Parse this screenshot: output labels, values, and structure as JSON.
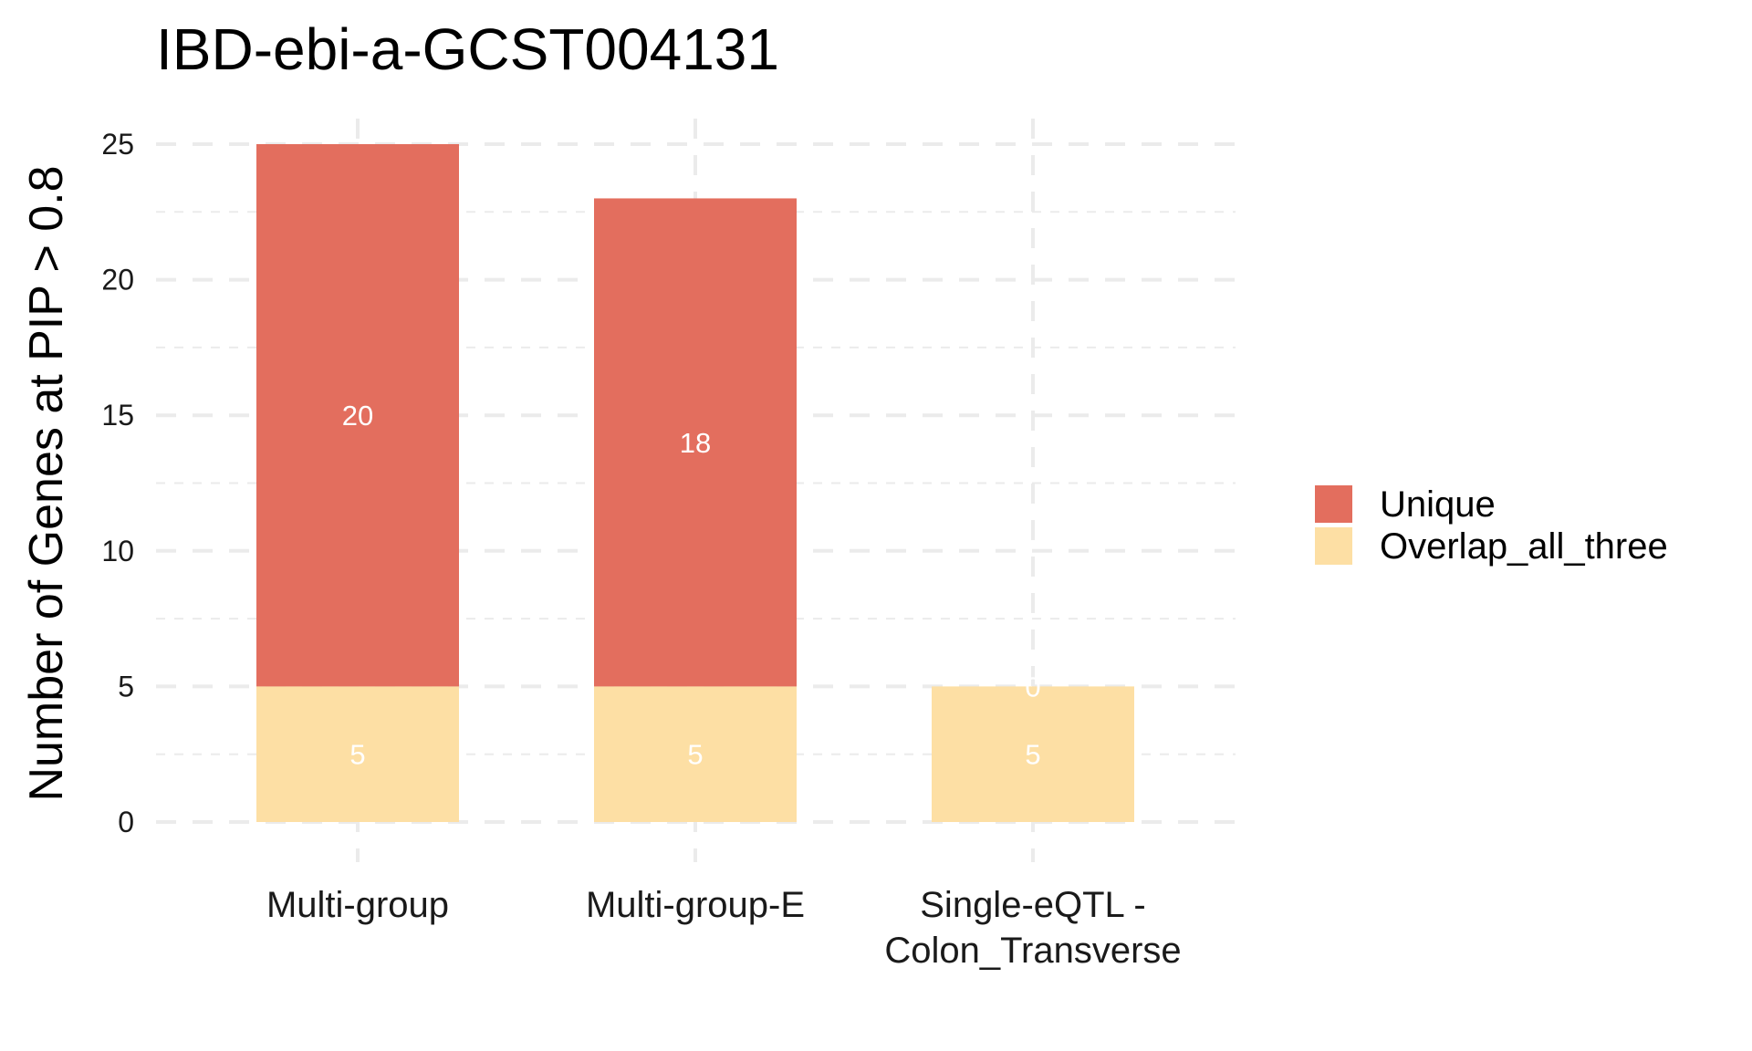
{
  "chart_data": {
    "type": "bar",
    "stacked": true,
    "title": "IBD-ebi-a-GCST004131",
    "xlabel": "",
    "ylabel": "Number of Genes at PIP > 0.8",
    "ylim": [
      0,
      25
    ],
    "yticks": [
      0,
      5,
      10,
      15,
      20,
      25
    ],
    "grid": true,
    "legend_position": "right",
    "categories": [
      "Multi-group",
      "Multi-group-E",
      "Single-eQTL -\nColon_Transverse"
    ],
    "series": [
      {
        "name": "Overlap_all_three",
        "color": "#FDDFA4",
        "values": [
          5,
          5,
          5
        ]
      },
      {
        "name": "Unique",
        "color": "#E36E5E",
        "values": [
          20,
          18,
          0
        ]
      }
    ],
    "legend": [
      "Unique",
      "Overlap_all_three"
    ]
  }
}
